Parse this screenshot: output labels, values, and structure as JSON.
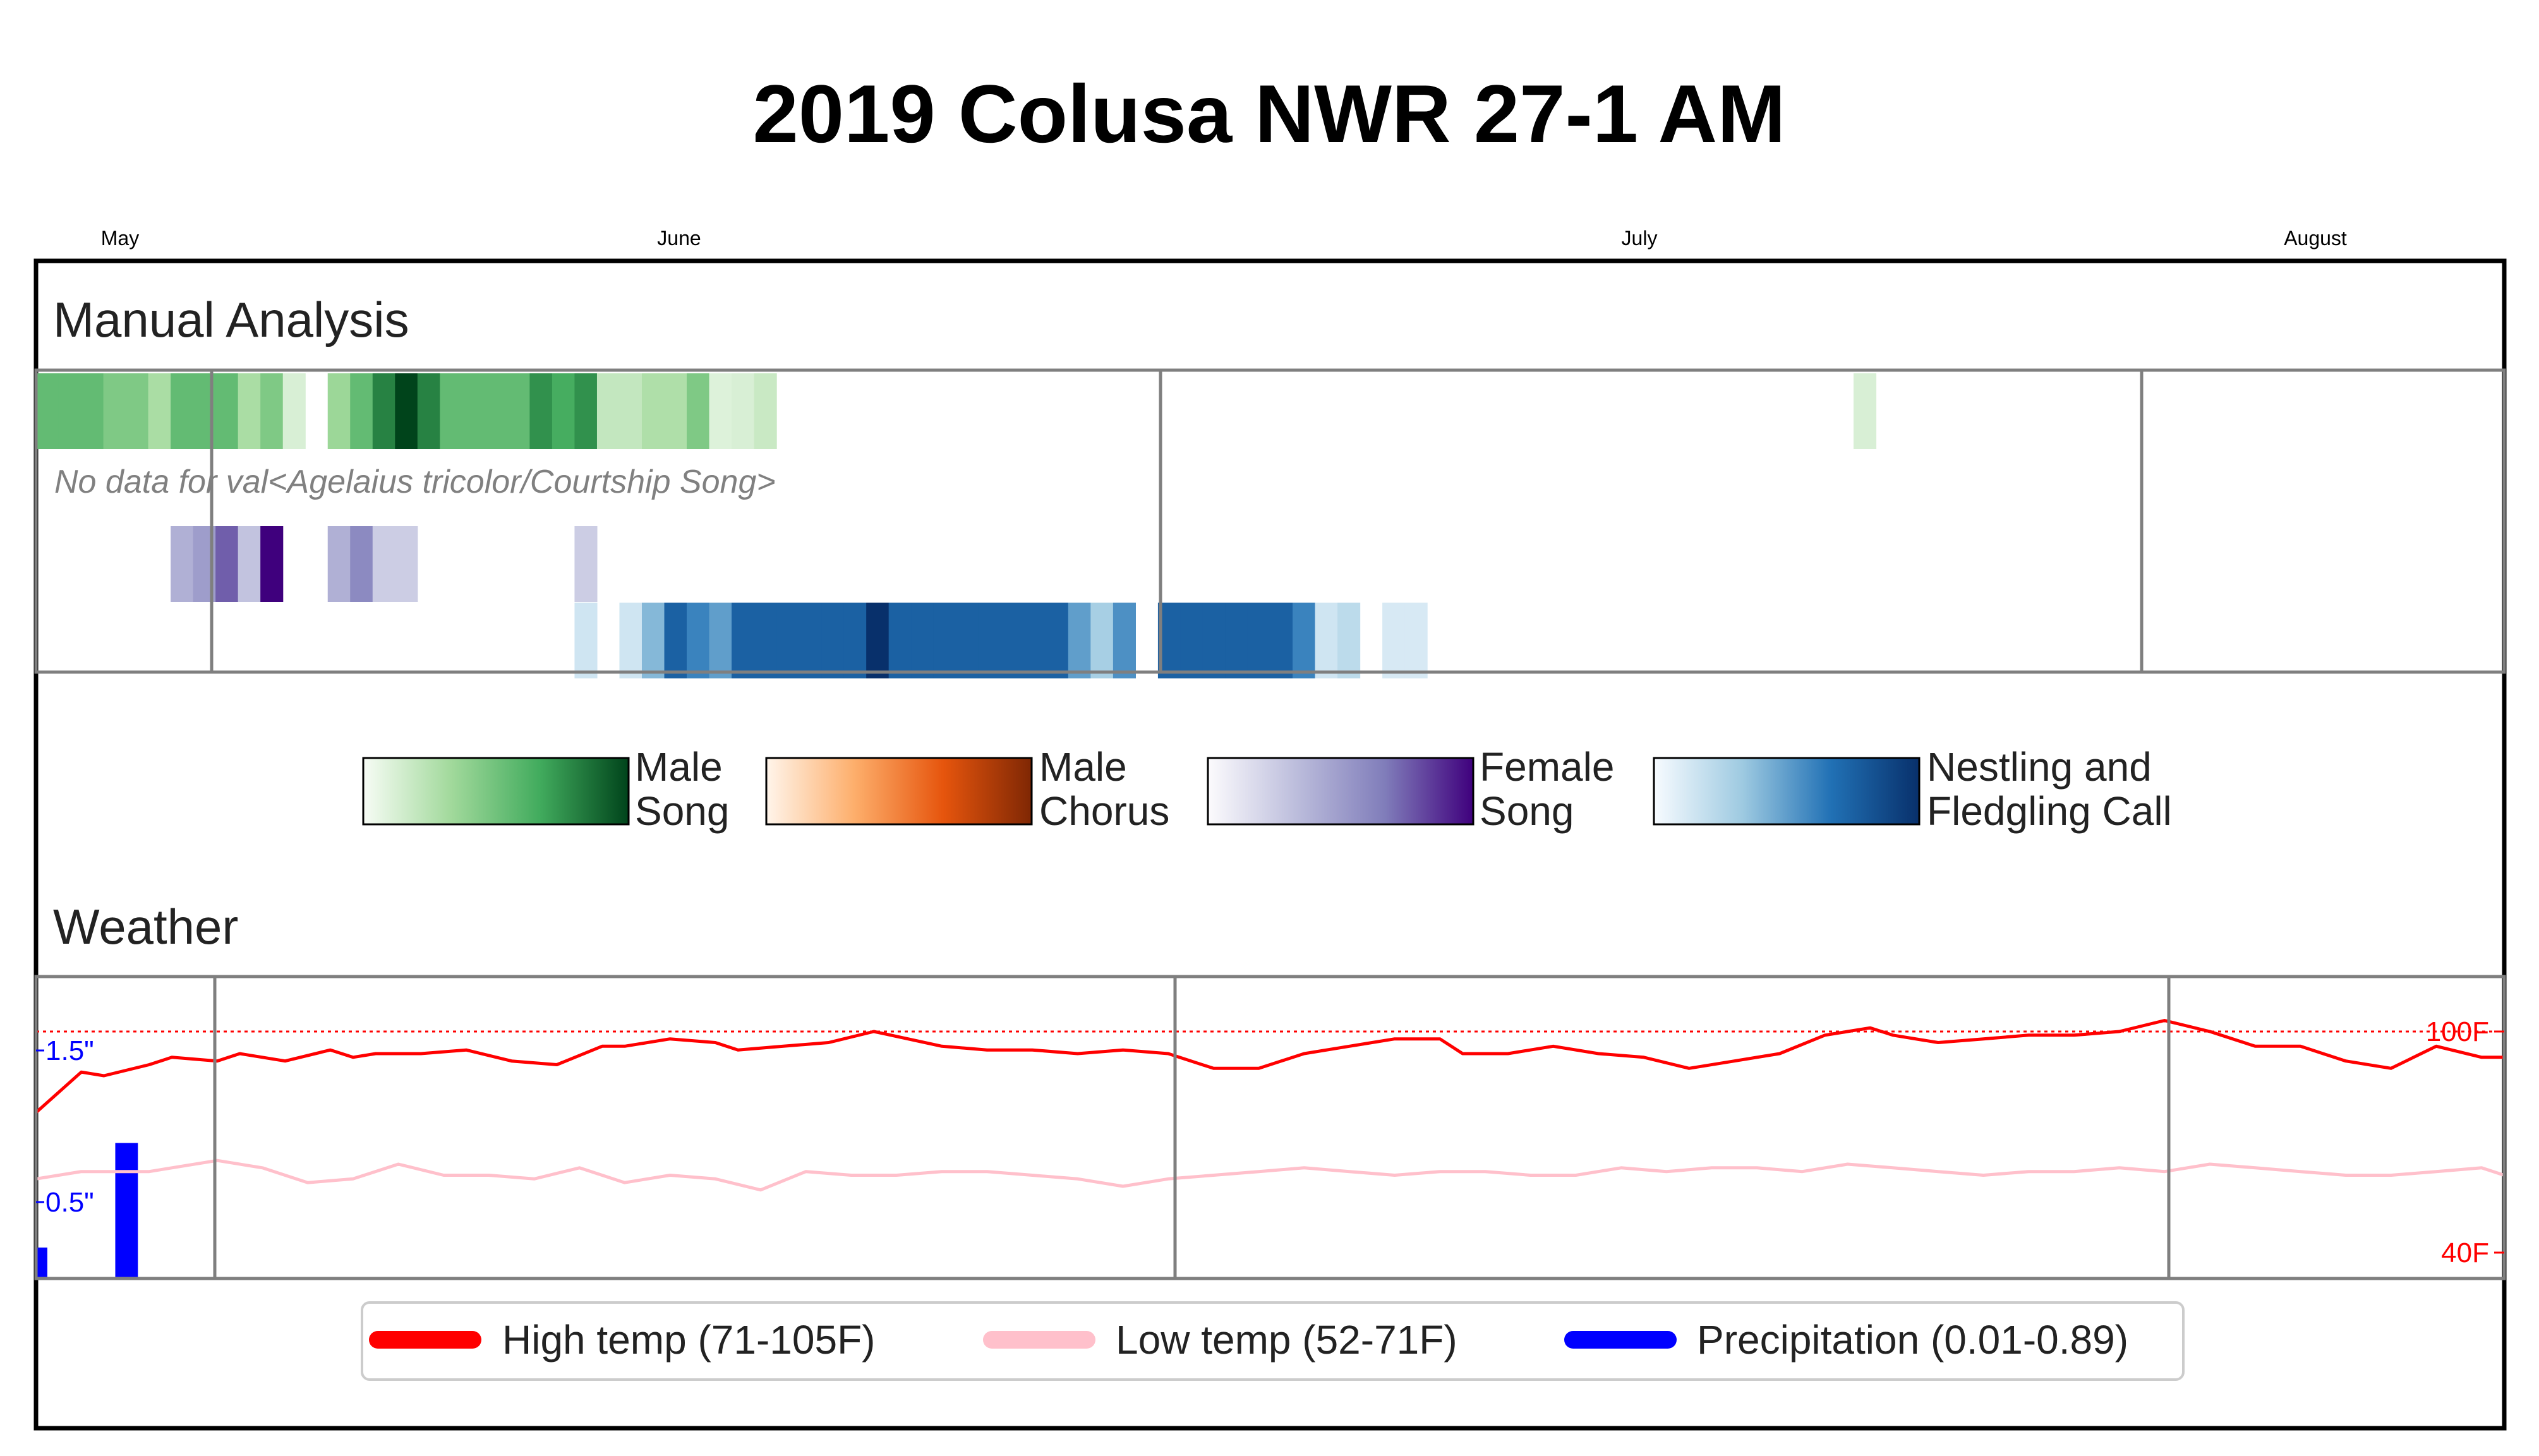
{
  "title": "2019 Colusa NWR 27-1 AM",
  "months": [
    "May",
    "June",
    "July",
    "August"
  ],
  "sections": {
    "manual": "Manual Analysis",
    "weather": "Weather"
  },
  "no_data_text": "No data for val<Agelaius tricolor/Courtship Song>",
  "colorbars": [
    {
      "label1": "Male",
      "label2": "Song",
      "colors": [
        "#f7fcf5",
        "#a1d99b",
        "#41ab5d",
        "#00441b"
      ]
    },
    {
      "label1": "Male",
      "label2": "Chorus",
      "colors": [
        "#fff5eb",
        "#fdae6b",
        "#e6550d",
        "#7f2704"
      ]
    },
    {
      "label1": "Female",
      "label2": "Song",
      "colors": [
        "#fcfbfd",
        "#bcbddc",
        "#807dba",
        "#3f007d"
      ]
    },
    {
      "label1": "Nestling and",
      "label2": "Fledgling Call",
      "colors": [
        "#f7fbff",
        "#9ecae1",
        "#2171b5",
        "#08306b"
      ]
    }
  ],
  "weather_axis": {
    "left_ticks": [
      "1.5\"",
      "0.5\""
    ],
    "right_ticks": [
      "100F",
      "40F"
    ]
  },
  "legend": [
    {
      "label": "High temp (71-105F)",
      "color": "#ff0000"
    },
    {
      "label": "Low temp (52-71F)",
      "color": "#ffc0cb"
    },
    {
      "label": "Precipitation (0.01-0.89)",
      "color": "#0000ff"
    }
  ],
  "chart_data": [
    {
      "type": "heatmap",
      "title": "Manual Analysis",
      "x_start": "2019-04-29",
      "x_end": "2019-08-16",
      "rows": [
        {
          "name": "Male Song",
          "cmap": [
            "#f7fcf5",
            "#a1d99b",
            "#41ab5d",
            "#00441b"
          ],
          "cells": [
            [
              "2019-04-29",
              0.55
            ],
            [
              "2019-04-30",
              0.55
            ],
            [
              "2019-05-01",
              0.55
            ],
            [
              "2019-05-02",
              0.45
            ],
            [
              "2019-05-03",
              0.45
            ],
            [
              "2019-05-04",
              0.3
            ],
            [
              "2019-05-05",
              0.55
            ],
            [
              "2019-05-06",
              0.55
            ],
            [
              "2019-05-07",
              0.55
            ],
            [
              "2019-05-08",
              0.3
            ],
            [
              "2019-05-09",
              0.45
            ],
            [
              "2019-05-10",
              0.12
            ],
            [
              "2019-05-12",
              0.35
            ],
            [
              "2019-05-13",
              0.55
            ],
            [
              "2019-05-14",
              0.8
            ],
            [
              "2019-05-15",
              1.0
            ],
            [
              "2019-05-16",
              0.8
            ],
            [
              "2019-05-17",
              0.55
            ],
            [
              "2019-05-18",
              0.55
            ],
            [
              "2019-05-19",
              0.55
            ],
            [
              "2019-05-20",
              0.55
            ],
            [
              "2019-05-21",
              0.75
            ],
            [
              "2019-05-22",
              0.65
            ],
            [
              "2019-05-23",
              0.75
            ],
            [
              "2019-05-24",
              0.2
            ],
            [
              "2019-05-25",
              0.2
            ],
            [
              "2019-05-26",
              0.28
            ],
            [
              "2019-05-27",
              0.28
            ],
            [
              "2019-05-28",
              0.45
            ],
            [
              "2019-05-29",
              0.1
            ],
            [
              "2019-05-30",
              0.12
            ],
            [
              "2019-05-31",
              0.18
            ],
            [
              "2019-07-19",
              0.12
            ]
          ]
        },
        {
          "name": "Courtship Song",
          "cells": []
        },
        {
          "name": "Female Song",
          "cmap": [
            "#fcfbfd",
            "#bcbddc",
            "#807dba",
            "#3f007d"
          ],
          "cells": [
            [
              "2019-05-05",
              0.4
            ],
            [
              "2019-05-06",
              0.5
            ],
            [
              "2019-05-07",
              0.75
            ],
            [
              "2019-05-08",
              0.3
            ],
            [
              "2019-05-09",
              1.0
            ],
            [
              "2019-05-12",
              0.4
            ],
            [
              "2019-05-13",
              0.6
            ],
            [
              "2019-05-14",
              0.25
            ],
            [
              "2019-05-15",
              0.25
            ],
            [
              "2019-05-23",
              0.25
            ]
          ]
        },
        {
          "name": "Nestling and Fledgling Call",
          "cmap": [
            "#f7fbff",
            "#9ecae1",
            "#2171b5",
            "#08306b"
          ],
          "cells": [
            [
              "2019-05-23",
              0.15
            ],
            [
              "2019-05-25",
              0.15
            ],
            [
              "2019-05-26",
              0.4
            ],
            [
              "2019-05-27",
              0.75
            ],
            [
              "2019-05-28",
              0.6
            ],
            [
              "2019-05-29",
              0.5
            ],
            [
              "2019-05-30",
              0.75
            ],
            [
              "2019-05-31",
              0.75
            ],
            [
              "2019-06-01",
              0.75
            ],
            [
              "2019-06-02",
              0.75
            ],
            [
              "2019-06-03",
              0.75
            ],
            [
              "2019-06-04",
              0.75
            ],
            [
              "2019-06-05",
              1.0
            ],
            [
              "2019-06-06",
              0.75
            ],
            [
              "2019-06-07",
              0.75
            ],
            [
              "2019-06-08",
              0.75
            ],
            [
              "2019-06-09",
              0.75
            ],
            [
              "2019-06-10",
              0.75
            ],
            [
              "2019-06-11",
              0.75
            ],
            [
              "2019-06-12",
              0.75
            ],
            [
              "2019-06-13",
              0.75
            ],
            [
              "2019-06-14",
              0.5
            ],
            [
              "2019-06-15",
              0.3
            ],
            [
              "2019-06-16",
              0.55
            ],
            [
              "2019-06-18",
              0.75
            ],
            [
              "2019-06-19",
              0.75
            ],
            [
              "2019-06-20",
              0.75
            ],
            [
              "2019-06-21",
              0.75
            ],
            [
              "2019-06-22",
              0.75
            ],
            [
              "2019-06-23",
              0.75
            ],
            [
              "2019-06-24",
              0.6
            ],
            [
              "2019-06-25",
              0.15
            ],
            [
              "2019-06-26",
              0.22
            ],
            [
              "2019-06-28",
              0.12
            ],
            [
              "2019-06-29",
              0.12
            ]
          ]
        }
      ]
    },
    {
      "type": "line",
      "title": "Weather",
      "x_start": "2019-04-29",
      "x_end": "2019-08-16",
      "ylim_temp": [
        40,
        105
      ],
      "ylim_precip": [
        0,
        2
      ],
      "reference_line": 100,
      "series": [
        {
          "name": "High temp (71-105F)",
          "color": "#ff0000",
          "x": [
            "2019-04-29",
            "2019-05-01",
            "2019-05-02",
            "2019-05-04",
            "2019-05-05",
            "2019-05-07",
            "2019-05-08",
            "2019-05-10",
            "2019-05-12",
            "2019-05-13",
            "2019-05-14",
            "2019-05-16",
            "2019-05-18",
            "2019-05-20",
            "2019-05-22",
            "2019-05-24",
            "2019-05-25",
            "2019-05-27",
            "2019-05-29",
            "2019-05-30",
            "2019-06-01",
            "2019-06-03",
            "2019-06-05",
            "2019-06-08",
            "2019-06-10",
            "2019-06-12",
            "2019-06-14",
            "2019-06-16",
            "2019-06-18",
            "2019-06-20",
            "2019-06-22",
            "2019-06-24",
            "2019-06-26",
            "2019-06-28",
            "2019-06-30",
            "2019-07-01",
            "2019-07-03",
            "2019-07-05",
            "2019-07-07",
            "2019-07-09",
            "2019-07-11",
            "2019-07-13",
            "2019-07-15",
            "2019-07-17",
            "2019-07-19",
            "2019-07-20",
            "2019-07-22",
            "2019-07-24",
            "2019-07-26",
            "2019-07-28",
            "2019-07-30",
            "2019-08-01",
            "2019-08-03",
            "2019-08-05",
            "2019-08-07",
            "2019-08-09",
            "2019-08-11",
            "2019-08-12",
            "2019-08-13",
            "2019-08-15",
            "2019-08-16"
          ],
          "y": [
            78,
            89,
            88,
            91,
            93,
            92,
            94,
            92,
            95,
            93,
            94,
            94,
            95,
            92,
            91,
            96,
            96,
            98,
            97,
            95,
            96,
            97,
            100,
            96,
            95,
            95,
            94,
            95,
            94,
            90,
            90,
            94,
            96,
            98,
            98,
            94,
            94,
            96,
            94,
            93,
            90,
            92,
            94,
            99,
            101,
            99,
            97,
            98,
            99,
            99,
            100,
            103,
            100,
            96,
            96,
            92,
            90,
            93,
            96,
            93,
            93
          ]
        },
        {
          "name": "Low temp (52-71F)",
          "color": "#ffc0cb",
          "x": [
            "2019-04-29",
            "2019-05-01",
            "2019-05-03",
            "2019-05-04",
            "2019-05-05",
            "2019-05-07",
            "2019-05-09",
            "2019-05-11",
            "2019-05-13",
            "2019-05-15",
            "2019-05-17",
            "2019-05-19",
            "2019-05-21",
            "2019-05-23",
            "2019-05-25",
            "2019-05-27",
            "2019-05-29",
            "2019-05-31",
            "2019-06-02",
            "2019-06-04",
            "2019-06-06",
            "2019-06-08",
            "2019-06-10",
            "2019-06-12",
            "2019-06-14",
            "2019-06-16",
            "2019-06-18",
            "2019-06-20",
            "2019-06-22",
            "2019-06-24",
            "2019-06-26",
            "2019-06-28",
            "2019-06-30",
            "2019-07-02",
            "2019-07-04",
            "2019-07-06",
            "2019-07-08",
            "2019-07-10",
            "2019-07-12",
            "2019-07-14",
            "2019-07-16",
            "2019-07-18",
            "2019-07-20",
            "2019-07-22",
            "2019-07-24",
            "2019-07-26",
            "2019-07-28",
            "2019-07-30",
            "2019-08-01",
            "2019-08-03",
            "2019-08-05",
            "2019-08-07",
            "2019-08-09",
            "2019-08-11",
            "2019-08-13",
            "2019-08-15",
            "2019-08-16"
          ],
          "y": [
            60,
            62,
            62,
            62,
            63,
            65,
            63,
            59,
            60,
            64,
            61,
            61,
            60,
            63,
            59,
            61,
            60,
            57,
            62,
            61,
            61,
            62,
            62,
            61,
            60,
            58,
            60,
            61,
            62,
            63,
            62,
            61,
            62,
            62,
            61,
            61,
            63,
            62,
            63,
            63,
            62,
            64,
            63,
            62,
            61,
            62,
            62,
            63,
            62,
            64,
            63,
            62,
            61,
            61,
            62,
            63,
            61
          ]
        },
        {
          "name": "Precipitation (0.01-0.89)",
          "color": "#0000ff",
          "bars": [
            [
              "2019-04-29",
              0.2
            ],
            [
              "2019-05-03",
              0.89
            ]
          ]
        }
      ]
    }
  ]
}
